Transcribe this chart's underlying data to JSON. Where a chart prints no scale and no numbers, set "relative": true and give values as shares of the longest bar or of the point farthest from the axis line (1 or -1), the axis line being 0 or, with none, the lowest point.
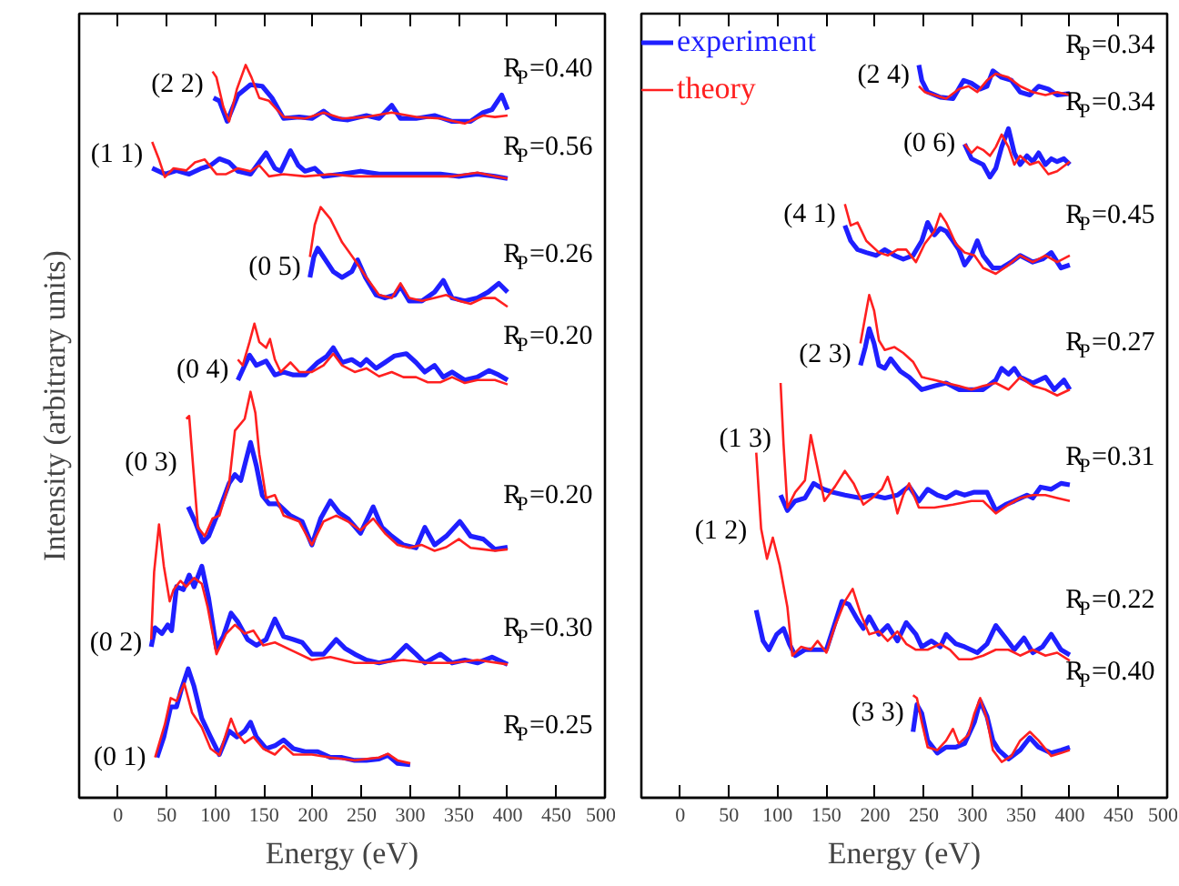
{
  "chart_data": [
    {
      "type": "line",
      "relative": true,
      "xlabel": "Energy (eV)",
      "ylabel": "Intensity (arbitrary units)",
      "xlim": [
        -40,
        500
      ],
      "xticks": [
        0,
        50,
        100,
        150,
        200,
        250,
        300,
        350,
        400,
        450,
        500
      ],
      "tick_labels": "x",
      "grid": false,
      "legend": false,
      "series": [
        {
          "color": "#1f1fff",
          "x": [
            98,
            104,
            112,
            123,
            136,
            148,
            158,
            170,
            186,
            199,
            211,
            221,
            236,
            255,
            268,
            281,
            290,
            306,
            325,
            343,
            362,
            375,
            384,
            394,
            400
          ],
          "values": [
            0.955,
            0.951,
            0.923,
            0.959,
            0.973,
            0.971,
            0.955,
            0.927,
            0.929,
            0.927,
            0.937,
            0.927,
            0.925,
            0.931,
            0.927,
            0.945,
            0.927,
            0.927,
            0.931,
            0.923,
            0.923,
            0.935,
            0.939,
            0.959,
            0.939
          ]
        },
        {
          "color": "#ff2020",
          "x": [
            97,
            101,
            108,
            114,
            122,
            131,
            137,
            145,
            155,
            170,
            192,
            211,
            230,
            255,
            281,
            306,
            331,
            356,
            375,
            387,
            400
          ],
          "values": [
            0.991,
            0.983,
            0.943,
            0.923,
            0.967,
            1.0,
            0.983,
            0.955,
            0.951,
            0.929,
            0.927,
            0.935,
            0.927,
            0.929,
            0.935,
            0.929,
            0.927,
            0.92,
            0.931,
            0.929,
            0.931
          ]
        },
        {
          "color": "#1f1fff",
          "x": [
            35,
            48,
            60,
            73,
            86,
            95,
            104,
            114,
            123,
            136,
            152,
            161,
            167,
            177,
            185,
            192,
            202,
            211,
            230,
            249,
            268,
            287,
            306,
            331,
            350,
            369,
            387,
            400
          ],
          "values": [
            0.859,
            0.851,
            0.856,
            0.851,
            0.859,
            0.863,
            0.872,
            0.867,
            0.855,
            0.851,
            0.88,
            0.859,
            0.855,
            0.883,
            0.863,
            0.855,
            0.859,
            0.848,
            0.851,
            0.855,
            0.851,
            0.851,
            0.851,
            0.851,
            0.848,
            0.851,
            0.848,
            0.845
          ]
        },
        {
          "color": "#ff2020",
          "x": [
            35,
            42,
            48,
            57,
            70,
            79,
            89,
            101,
            111,
            123,
            136,
            145,
            155,
            170,
            192,
            218,
            243,
            268,
            293,
            318,
            343,
            369,
            387,
            400
          ],
          "values": [
            0.895,
            0.871,
            0.847,
            0.859,
            0.856,
            0.867,
            0.871,
            0.851,
            0.851,
            0.859,
            0.855,
            0.863,
            0.848,
            0.851,
            0.848,
            0.851,
            0.848,
            0.848,
            0.848,
            0.848,
            0.848,
            0.853,
            0.848,
            0.845
          ]
        },
        {
          "color": "#1f1fff",
          "x": [
            197,
            201,
            205,
            211,
            221,
            230,
            240,
            246,
            254,
            265,
            274,
            284,
            290,
            299,
            312,
            325,
            334,
            343,
            356,
            369,
            380,
            391,
            400
          ],
          "values": [
            0.71,
            0.738,
            0.75,
            0.738,
            0.718,
            0.71,
            0.718,
            0.734,
            0.71,
            0.686,
            0.682,
            0.686,
            0.698,
            0.678,
            0.678,
            0.69,
            0.706,
            0.682,
            0.678,
            0.682,
            0.69,
            0.702,
            0.69
          ]
        },
        {
          "color": "#ff2020",
          "x": [
            197,
            202,
            208,
            218,
            230,
            243,
            255,
            268,
            281,
            290,
            299,
            312,
            325,
            337,
            350,
            362,
            375,
            387,
            400
          ],
          "values": [
            0.738,
            0.782,
            0.806,
            0.79,
            0.758,
            0.734,
            0.71,
            0.686,
            0.682,
            0.702,
            0.682,
            0.678,
            0.682,
            0.686,
            0.678,
            0.674,
            0.682,
            0.682,
            0.67
          ]
        },
        {
          "color": "#1f1fff",
          "x": [
            123,
            130,
            135,
            142,
            152,
            161,
            170,
            180,
            192,
            205,
            214,
            221,
            230,
            240,
            249,
            255,
            265,
            274,
            284,
            296,
            306,
            315,
            325,
            334,
            343,
            356,
            369,
            381,
            391,
            400
          ],
          "values": [
            0.57,
            0.59,
            0.604,
            0.59,
            0.596,
            0.577,
            0.581,
            0.577,
            0.577,
            0.594,
            0.602,
            0.614,
            0.594,
            0.598,
            0.59,
            0.598,
            0.586,
            0.594,
            0.603,
            0.606,
            0.594,
            0.581,
            0.59,
            0.574,
            0.581,
            0.57,
            0.574,
            0.583,
            0.577,
            0.57
          ]
        },
        {
          "color": "#ff2020",
          "x": [
            123,
            128,
            135,
            140,
            145,
            152,
            156,
            161,
            167,
            177,
            186,
            199,
            211,
            221,
            230,
            243,
            255,
            268,
            281,
            293,
            306,
            318,
            331,
            343,
            356,
            369,
            387,
            400
          ],
          "values": [
            0.598,
            0.59,
            0.622,
            0.647,
            0.622,
            0.614,
            0.626,
            0.598,
            0.581,
            0.594,
            0.581,
            0.581,
            0.59,
            0.606,
            0.59,
            0.581,
            0.586,
            0.575,
            0.581,
            0.574,
            0.574,
            0.567,
            0.567,
            0.574,
            0.566,
            0.57,
            0.57,
            0.564
          ]
        },
        {
          "color": "#1f1fff",
          "x": [
            72,
            79,
            87,
            93,
            104,
            114,
            120,
            126,
            136,
            142,
            148,
            155,
            164,
            177,
            189,
            199,
            208,
            218,
            227,
            236,
            249,
            262,
            271,
            281,
            293,
            306,
            315,
            325,
            337,
            351,
            362,
            375,
            387,
            400
          ],
          "values": [
            0.397,
            0.377,
            0.349,
            0.357,
            0.393,
            0.429,
            0.441,
            0.433,
            0.485,
            0.453,
            0.413,
            0.401,
            0.401,
            0.385,
            0.377,
            0.345,
            0.381,
            0.405,
            0.389,
            0.381,
            0.361,
            0.397,
            0.369,
            0.357,
            0.345,
            0.341,
            0.369,
            0.345,
            0.357,
            0.377,
            0.357,
            0.353,
            0.339,
            0.342
          ]
        },
        {
          "color": "#ff2020",
          "x": [
            70,
            73,
            77,
            82,
            89,
            97,
            104,
            114,
            120,
            130,
            136,
            141,
            145,
            152,
            161,
            170,
            186,
            199,
            211,
            224,
            236,
            249,
            262,
            274,
            287,
            299,
            312,
            325,
            337,
            350,
            362,
            375,
            387,
            400
          ],
          "values": [
            0.517,
            0.521,
            0.453,
            0.369,
            0.357,
            0.381,
            0.385,
            0.429,
            0.501,
            0.517,
            0.554,
            0.525,
            0.469,
            0.409,
            0.413,
            0.385,
            0.377,
            0.345,
            0.377,
            0.385,
            0.377,
            0.365,
            0.381,
            0.361,
            0.345,
            0.341,
            0.345,
            0.337,
            0.342,
            0.353,
            0.341,
            0.339,
            0.337,
            0.339
          ]
        },
        {
          "color": "#1f1fff",
          "x": [
            34,
            38,
            45,
            51,
            55,
            60,
            67,
            73,
            78,
            86,
            93,
            101,
            108,
            116,
            123,
            133,
            142,
            152,
            161,
            170,
            180,
            189,
            199,
            211,
            224,
            233,
            243,
            255,
            268,
            281,
            296,
            306,
            315,
            331,
            343,
            356,
            369,
            384,
            400
          ],
          "values": [
            0.206,
            0.232,
            0.224,
            0.236,
            0.228,
            0.288,
            0.284,
            0.304,
            0.288,
            0.316,
            0.272,
            0.204,
            0.22,
            0.252,
            0.24,
            0.216,
            0.208,
            0.216,
            0.244,
            0.22,
            0.216,
            0.212,
            0.196,
            0.196,
            0.216,
            0.204,
            0.196,
            0.188,
            0.184,
            0.188,
            0.208,
            0.196,
            0.184,
            0.196,
            0.184,
            0.188,
            0.184,
            0.192,
            0.182
          ]
        },
        {
          "color": "#ff2020",
          "x": [
            34,
            37,
            42,
            47,
            53,
            57,
            64,
            70,
            78,
            86,
            92,
            101,
            111,
            120,
            130,
            139,
            149,
            161,
            180,
            199,
            218,
            243,
            268,
            293,
            318,
            343,
            369,
            400
          ],
          "values": [
            0.216,
            0.308,
            0.373,
            0.316,
            0.268,
            0.284,
            0.296,
            0.288,
            0.3,
            0.292,
            0.26,
            0.196,
            0.224,
            0.236,
            0.224,
            0.228,
            0.208,
            0.212,
            0.2,
            0.188,
            0.192,
            0.184,
            0.184,
            0.188,
            0.184,
            0.184,
            0.188,
            0.182
          ]
        },
        {
          "color": "#1f1fff",
          "x": [
            40,
            47,
            54,
            60,
            65,
            72,
            78,
            86,
            95,
            104,
            114,
            122,
            130,
            136,
            142,
            152,
            161,
            170,
            180,
            192,
            205,
            218,
            230,
            243,
            255,
            268,
            277,
            287,
            300
          ],
          "values": [
            0.055,
            0.083,
            0.124,
            0.124,
            0.148,
            0.176,
            0.152,
            0.108,
            0.083,
            0.059,
            0.091,
            0.083,
            0.091,
            0.103,
            0.083,
            0.067,
            0.071,
            0.079,
            0.067,
            0.063,
            0.063,
            0.055,
            0.055,
            0.051,
            0.051,
            0.053,
            0.058,
            0.047,
            0.045
          ]
        },
        {
          "color": "#ff2020",
          "x": [
            38,
            48,
            54,
            60,
            68,
            76,
            86,
            95,
            104,
            111,
            116,
            122,
            130,
            139,
            149,
            161,
            170,
            180,
            199,
            218,
            243,
            268,
            277,
            287,
            300
          ],
          "values": [
            0.055,
            0.1,
            0.136,
            0.132,
            0.156,
            0.116,
            0.096,
            0.067,
            0.058,
            0.088,
            0.108,
            0.088,
            0.075,
            0.083,
            0.067,
            0.059,
            0.071,
            0.059,
            0.059,
            0.055,
            0.051,
            0.055,
            0.06,
            0.051,
            0.047
          ]
        }
      ],
      "annotations": [
        "(2 2)",
        "(1 1)",
        "(0 5)",
        "(0 4)",
        "(0 3)",
        "(0 2)",
        "(0 1)",
        "R$_{P}$=0.40",
        "R$_{P}$=0.56",
        "R$_{P}$=0.26",
        "R$_{P}$=0.20",
        "R$_{P}$=0.20",
        "R$_{P}$=0.30",
        "R$_{P}$=0.25"
      ]
    },
    {
      "type": "line",
      "relative": true,
      "xlabel": "Energy (eV)",
      "xlim": [
        -40,
        500
      ],
      "xticks": [
        0,
        50,
        100,
        150,
        200,
        250,
        300,
        350,
        400,
        450,
        500
      ],
      "tick_labels": "x",
      "grid": false,
      "legend": "top left",
      "series": [
        {
          "name": "experiment",
          "color": "#1f1fff",
          "x": [
            245,
            248,
            254,
            267,
            280,
            291,
            299,
            308,
            315,
            321,
            330,
            340,
            349,
            359,
            368,
            378,
            387,
            400
          ],
          "values": [
            1.0,
            0.979,
            0.963,
            0.956,
            0.954,
            0.979,
            0.975,
            0.967,
            0.971,
            0.992,
            0.983,
            0.979,
            0.963,
            0.959,
            0.971,
            0.967,
            0.959,
            0.961
          ]
        },
        {
          "name": "theory",
          "color": "#ff2020",
          "x": [
            245,
            251,
            261,
            273,
            286,
            296,
            305,
            315,
            324,
            337,
            349,
            362,
            375,
            387,
            400
          ],
          "values": [
            0.971,
            0.963,
            0.959,
            0.954,
            0.967,
            0.971,
            0.963,
            0.979,
            0.988,
            0.983,
            0.971,
            0.963,
            0.959,
            0.963,
            0.959
          ]
        },
        {
          "color": "#1f1fff",
          "x": [
            292,
            299,
            305,
            311,
            318,
            324,
            330,
            337,
            343,
            349,
            356,
            362,
            368,
            375,
            381,
            387,
            394,
            400
          ],
          "values": [
            0.892,
            0.872,
            0.868,
            0.864,
            0.847,
            0.859,
            0.888,
            0.913,
            0.88,
            0.864,
            0.876,
            0.868,
            0.88,
            0.864,
            0.872,
            0.868,
            0.872,
            0.864
          ]
        },
        {
          "color": "#ff2020",
          "x": [
            292,
            299,
            305,
            311,
            318,
            324,
            330,
            337,
            343,
            349,
            359,
            368,
            378,
            387,
            400
          ],
          "values": [
            0.892,
            0.88,
            0.888,
            0.884,
            0.876,
            0.888,
            0.905,
            0.888,
            0.864,
            0.876,
            0.864,
            0.868,
            0.851,
            0.855,
            0.868
          ]
        },
        {
          "color": "#1f1fff",
          "x": [
            169,
            175,
            182,
            191,
            201,
            210,
            220,
            229,
            239,
            248,
            254,
            261,
            267,
            273,
            280,
            286,
            292,
            299,
            305,
            311,
            321,
            330,
            340,
            349,
            362,
            372,
            381,
            391,
            400
          ],
          "values": [
            0.781,
            0.76,
            0.748,
            0.744,
            0.74,
            0.748,
            0.74,
            0.735,
            0.74,
            0.76,
            0.785,
            0.768,
            0.777,
            0.773,
            0.76,
            0.748,
            0.727,
            0.74,
            0.76,
            0.74,
            0.723,
            0.723,
            0.731,
            0.74,
            0.731,
            0.735,
            0.744,
            0.723,
            0.727
          ]
        },
        {
          "color": "#ff2020",
          "x": [
            169,
            175,
            182,
            191,
            204,
            213,
            223,
            232,
            242,
            251,
            261,
            267,
            273,
            283,
            292,
            302,
            311,
            324,
            337,
            349,
            362,
            375,
            387,
            400
          ],
          "values": [
            0.81,
            0.781,
            0.785,
            0.76,
            0.744,
            0.74,
            0.748,
            0.748,
            0.731,
            0.756,
            0.773,
            0.797,
            0.785,
            0.756,
            0.744,
            0.74,
            0.723,
            0.715,
            0.727,
            0.74,
            0.731,
            0.74,
            0.731,
            0.74
          ]
        },
        {
          "color": "#1f1fff",
          "x": [
            185,
            190,
            194,
            199,
            204,
            210,
            216,
            226,
            235,
            248,
            261,
            273,
            286,
            299,
            311,
            324,
            330,
            337,
            343,
            349,
            362,
            375,
            384,
            394,
            400
          ],
          "values": [
            0.59,
            0.615,
            0.64,
            0.62,
            0.59,
            0.586,
            0.599,
            0.582,
            0.574,
            0.557,
            0.562,
            0.566,
            0.557,
            0.557,
            0.557,
            0.57,
            0.586,
            0.578,
            0.586,
            0.574,
            0.566,
            0.574,
            0.557,
            0.57,
            0.557
          ]
        },
        {
          "color": "#ff2020",
          "x": [
            185,
            190,
            194,
            199,
            204,
            210,
            220,
            229,
            239,
            248,
            261,
            273,
            286,
            299,
            311,
            324,
            337,
            349,
            362,
            375,
            387,
            400
          ],
          "values": [
            0.62,
            0.657,
            0.686,
            0.665,
            0.624,
            0.611,
            0.615,
            0.607,
            0.595,
            0.574,
            0.57,
            0.566,
            0.562,
            0.557,
            0.562,
            0.566,
            0.557,
            0.574,
            0.562,
            0.557,
            0.549,
            0.557
          ]
        },
        {
          "color": "#1f1fff",
          "x": [
            103,
            110,
            118,
            128,
            137,
            147,
            156,
            169,
            185,
            197,
            210,
            223,
            235,
            245,
            254,
            264,
            273,
            283,
            292,
            302,
            315,
            324,
            334,
            343,
            356,
            362,
            370,
            381,
            391,
            400
          ],
          "values": [
            0.413,
            0.392,
            0.405,
            0.409,
            0.429,
            0.421,
            0.417,
            0.413,
            0.409,
            0.413,
            0.409,
            0.413,
            0.425,
            0.405,
            0.421,
            0.413,
            0.409,
            0.417,
            0.413,
            0.417,
            0.417,
            0.392,
            0.4,
            0.405,
            0.413,
            0.409,
            0.424,
            0.421,
            0.429,
            0.427
          ]
        },
        {
          "color": "#ff2020",
          "x": [
            103,
            106,
            110,
            118,
            128,
            134,
            141,
            148,
            159,
            169,
            178,
            188,
            197,
            207,
            213,
            218,
            223,
            229,
            235,
            245,
            261,
            280,
            299,
            311,
            324,
            337,
            349,
            362,
            375,
            387,
            400
          ],
          "values": [
            0.566,
            0.483,
            0.396,
            0.417,
            0.433,
            0.495,
            0.45,
            0.405,
            0.425,
            0.446,
            0.429,
            0.4,
            0.409,
            0.421,
            0.438,
            0.417,
            0.388,
            0.413,
            0.429,
            0.396,
            0.396,
            0.4,
            0.405,
            0.405,
            0.388,
            0.4,
            0.409,
            0.413,
            0.413,
            0.409,
            0.405
          ]
        },
        {
          "color": "#1f1fff",
          "x": [
            78,
            85,
            91,
            99,
            106,
            112,
            118,
            128,
            141,
            150,
            159,
            166,
            173,
            182,
            188,
            194,
            204,
            213,
            223,
            232,
            242,
            248,
            258,
            267,
            273,
            283,
            292,
            305,
            315,
            324,
            334,
            343,
            353,
            362,
            372,
            381,
            391,
            400
          ],
          "values": [
            0.256,
            0.214,
            0.202,
            0.223,
            0.231,
            0.21,
            0.194,
            0.202,
            0.202,
            0.202,
            0.239,
            0.268,
            0.264,
            0.243,
            0.231,
            0.247,
            0.223,
            0.235,
            0.214,
            0.239,
            0.223,
            0.206,
            0.214,
            0.206,
            0.223,
            0.21,
            0.206,
            0.198,
            0.21,
            0.235,
            0.218,
            0.202,
            0.218,
            0.198,
            0.206,
            0.223,
            0.202,
            0.195
          ]
        },
        {
          "color": "#ff2020",
          "x": [
            78,
            83,
            89,
            95,
            102,
            110,
            115,
            124,
            134,
            141,
            150,
            159,
            169,
            177,
            185,
            194,
            204,
            213,
            223,
            232,
            242,
            254,
            267,
            277,
            286,
            299,
            311,
            324,
            337,
            349,
            362,
            375,
            387,
            400
          ],
          "values": [
            0.471,
            0.367,
            0.326,
            0.355,
            0.318,
            0.26,
            0.194,
            0.206,
            0.202,
            0.214,
            0.198,
            0.235,
            0.268,
            0.285,
            0.252,
            0.223,
            0.227,
            0.214,
            0.227,
            0.21,
            0.202,
            0.202,
            0.21,
            0.202,
            0.189,
            0.189,
            0.194,
            0.202,
            0.202,
            0.194,
            0.202,
            0.194,
            0.198,
            0.187
          ]
        },
        {
          "color": "#1f1fff",
          "x": [
            239,
            243,
            248,
            254,
            264,
            273,
            283,
            292,
            302,
            308,
            315,
            321,
            327,
            337,
            349,
            359,
            368,
            381,
            391,
            400
          ],
          "values": [
            0.09,
            0.127,
            0.115,
            0.078,
            0.061,
            0.069,
            0.069,
            0.074,
            0.103,
            0.132,
            0.111,
            0.078,
            0.065,
            0.053,
            0.065,
            0.082,
            0.069,
            0.061,
            0.065,
            0.069
          ]
        },
        {
          "color": "#ff2020",
          "x": [
            239,
            243,
            248,
            254,
            264,
            273,
            280,
            286,
            296,
            302,
            308,
            315,
            321,
            330,
            340,
            349,
            359,
            368,
            381,
            391,
            400
          ],
          "values": [
            0.14,
            0.136,
            0.103,
            0.069,
            0.065,
            0.078,
            0.094,
            0.074,
            0.086,
            0.115,
            0.136,
            0.107,
            0.065,
            0.049,
            0.057,
            0.078,
            0.09,
            0.078,
            0.057,
            0.061,
            0.065
          ]
        }
      ],
      "annotations": [
        "(2 4)",
        "(0 6)",
        "(4 1)",
        "(2 3)",
        "(1 3)",
        "(1 2)",
        "(3 3)",
        "R$_{P}$=0.34",
        "R$_{P}$=0.34",
        "R$_{P}$=0.45",
        "R$_{P}$=0.27",
        "R$_{P}$=0.31",
        "R$_{P}$=0.22",
        "R$_{P}$=0.40"
      ]
    }
  ]
}
